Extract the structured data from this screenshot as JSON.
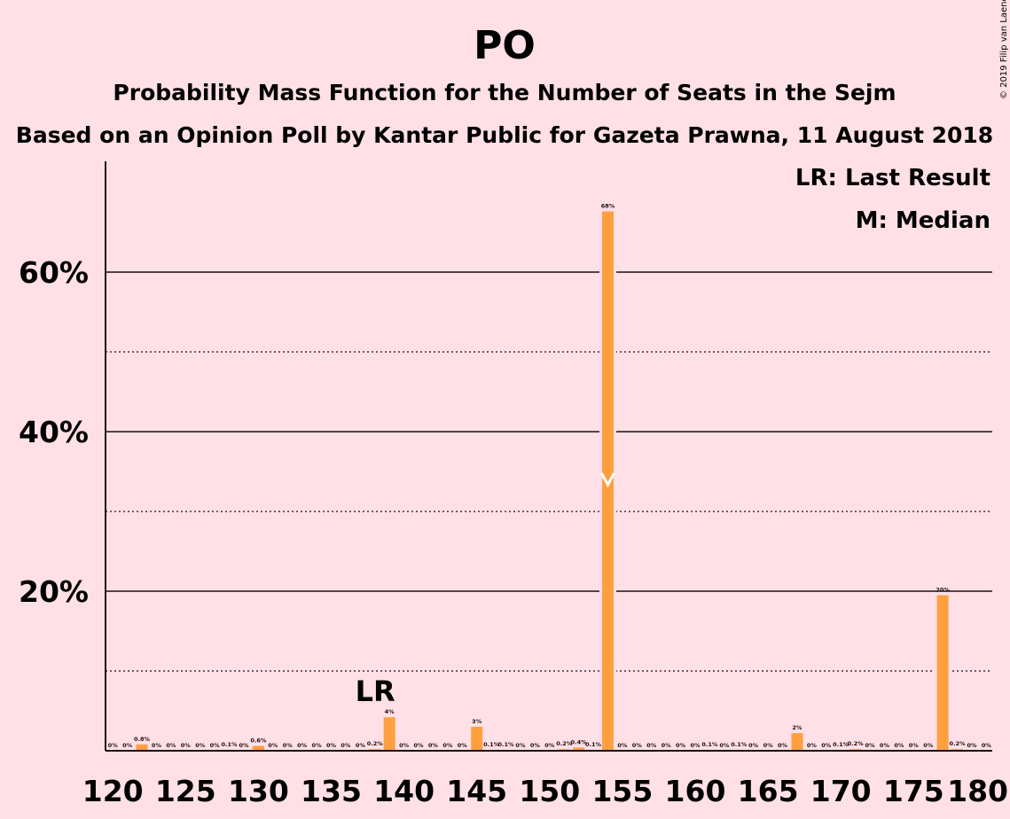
{
  "title": "PO",
  "subtitle1": "Probability Mass Function for the Number of Seats in the Sejm",
  "subtitle2": "Based on an Opinion Poll by Kantar Public for Gazeta Prawna, 11 August 2018",
  "legend": {
    "last_result": "LR: Last Result",
    "median": "M: Median"
  },
  "copyright": "© 2019 Filip van Laenen",
  "colors": {
    "background": "#ffe0e6",
    "bar": "#ff9f3f",
    "text": "#1a0f0f",
    "median_marker": "#ffffff"
  },
  "chart_data": {
    "type": "bar",
    "x": [
      120,
      121,
      122,
      123,
      124,
      125,
      126,
      127,
      128,
      129,
      130,
      131,
      132,
      133,
      134,
      135,
      136,
      137,
      138,
      139,
      140,
      141,
      142,
      143,
      144,
      145,
      146,
      147,
      148,
      149,
      150,
      151,
      152,
      153,
      154,
      155,
      156,
      157,
      158,
      159,
      160,
      161,
      162,
      163,
      164,
      165,
      166,
      167,
      168,
      169,
      170,
      171,
      172,
      173,
      174,
      175,
      176,
      177,
      178,
      179,
      180
    ],
    "values": [
      0,
      0,
      0.8,
      0,
      0,
      0,
      0,
      0,
      0.1,
      0,
      0.6,
      0,
      0,
      0,
      0,
      0,
      0,
      0,
      0.2,
      4.2,
      0,
      0,
      0,
      0,
      0,
      3,
      0.1,
      0.1,
      0,
      0,
      0,
      0.2,
      0.4,
      0.1,
      67.6,
      0,
      0,
      0,
      0,
      0,
      0,
      0.1,
      0,
      0.1,
      0,
      0,
      0,
      2.2,
      0,
      0,
      0.1,
      0.2,
      0,
      0,
      0,
      0,
      0,
      19.5,
      0.2,
      0,
      0
    ],
    "value_labels": [
      "0%",
      "0%",
      "0.8%",
      "0%",
      "0%",
      "0%",
      "0%",
      "0%",
      "0.1%",
      "0%",
      "0.6%",
      "0%",
      "0%",
      "0%",
      "0%",
      "0%",
      "0%",
      "0%",
      "0.2%",
      "4%",
      "0%",
      "0%",
      "0%",
      "0%",
      "0%",
      "3%",
      "0.1%",
      "0.1%",
      "0%",
      "0%",
      "0%",
      "0.2%",
      "0.4%",
      "0.1%",
      "68%",
      "0%",
      "0%",
      "0%",
      "0%",
      "0%",
      "0%",
      "0.1%",
      "0%",
      "0.1%",
      "0%",
      "0%",
      "0%",
      "2%",
      "0%",
      "0%",
      "0.1%",
      "0.2%",
      "0%",
      "0%",
      "0%",
      "0%",
      "0%",
      "20%",
      "0.2%",
      "0%",
      "0%"
    ],
    "xticks": [
      120,
      125,
      130,
      135,
      140,
      145,
      150,
      155,
      160,
      165,
      170,
      175,
      180
    ],
    "xtick_labels": [
      "120",
      "125",
      "130",
      "135",
      "140",
      "145",
      "150",
      "155",
      "160",
      "165",
      "170",
      "175",
      "180"
    ],
    "yticks_major": [
      20,
      40,
      60
    ],
    "ytick_labels": [
      "20%",
      "40%",
      "60%"
    ],
    "yticks_minor": [
      10,
      30,
      50
    ],
    "ylim": [
      0,
      74
    ],
    "last_result_seat": 139,
    "last_result_label": "LR",
    "median_seat": 154,
    "xlabel": "",
    "ylabel": ""
  }
}
